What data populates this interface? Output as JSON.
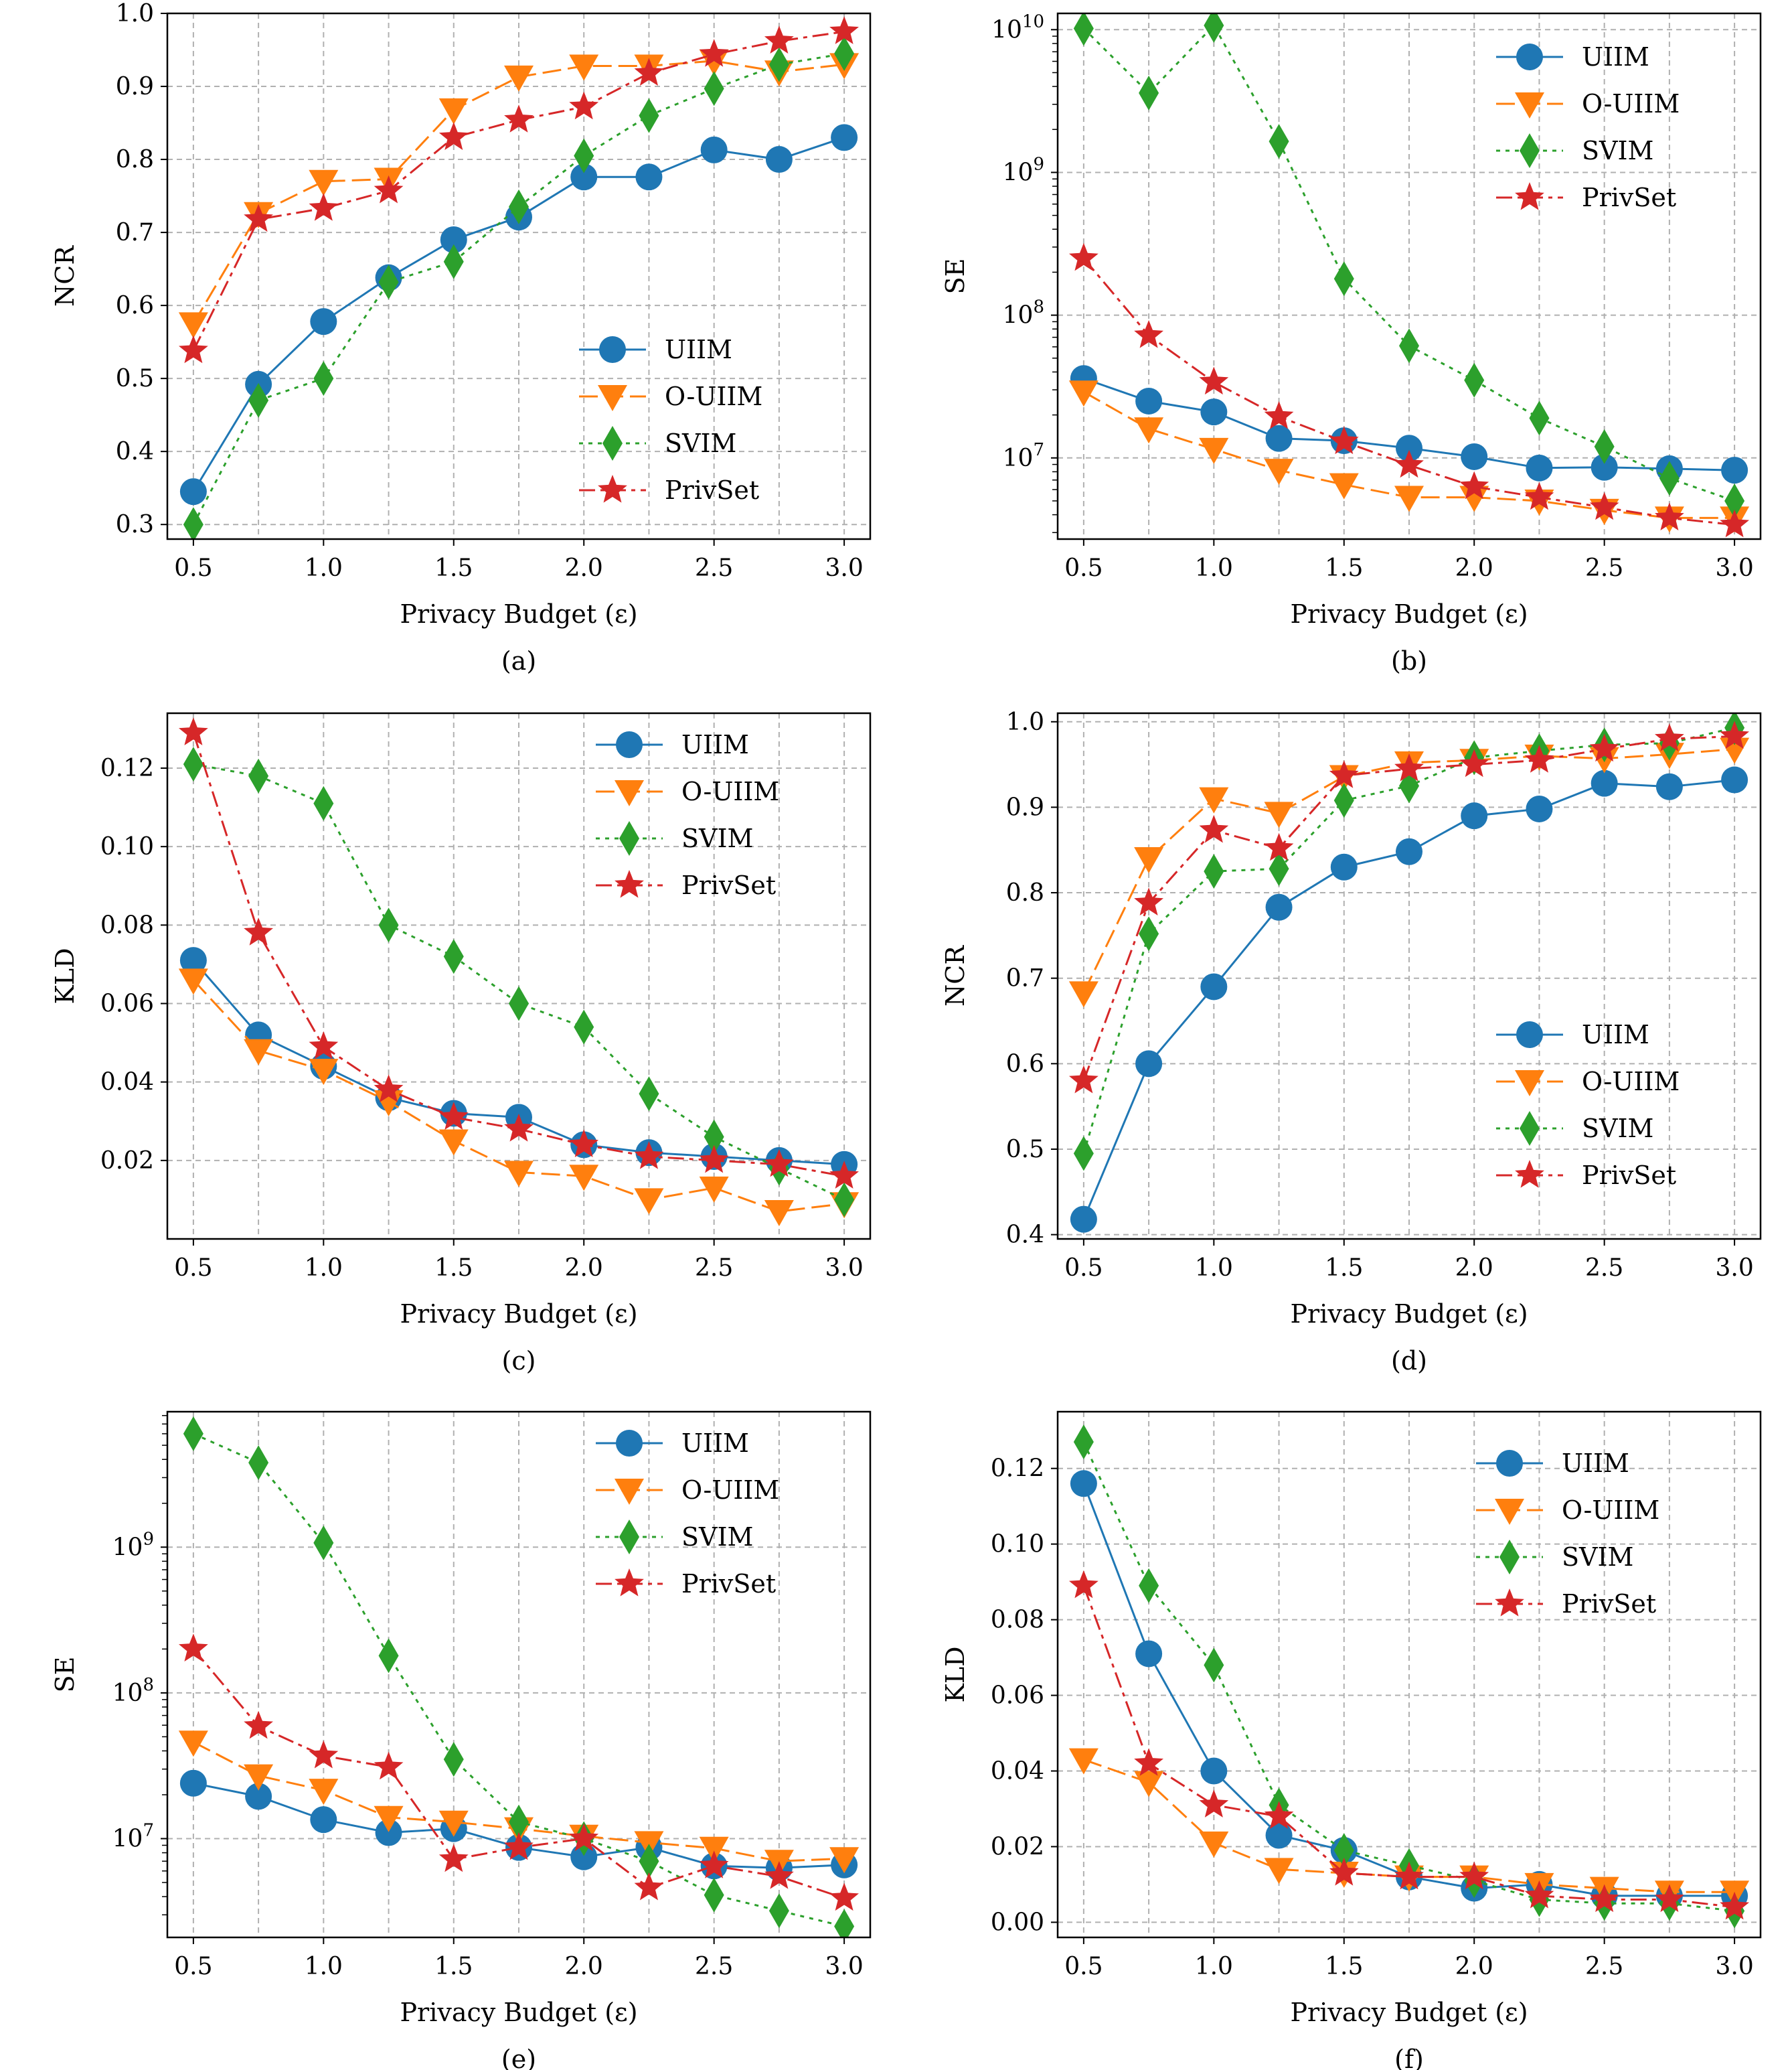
{
  "colors": {
    "UIIM": "#1f77b4",
    "O-UIIM": "#ff7f0e",
    "SVIM": "#2ca02c",
    "PrivSet": "#d62728"
  },
  "legend": [
    "UIIM",
    "O-UIIM",
    "SVIM",
    "PrivSet"
  ],
  "chart_data": [
    {
      "type": "line",
      "caption": "(a)",
      "xlabel": "Privacy Budget (ε)",
      "ylabel": "NCR",
      "yscale": "linear",
      "xlim": [
        0.4,
        3.1
      ],
      "ylim": [
        0.28,
        1.0
      ],
      "xticks": [
        0.5,
        1.0,
        1.5,
        2.0,
        2.5,
        3.0
      ],
      "xtick_labels": [
        "0.5",
        "1.0",
        "1.5",
        "2.0",
        "2.5",
        "3.0"
      ],
      "yticks": [
        0.3,
        0.4,
        0.5,
        0.6,
        0.7,
        0.8,
        0.9,
        1.0
      ],
      "ytick_labels": [
        "0.3",
        "0.4",
        "0.5",
        "0.6",
        "0.7",
        "0.8",
        "0.9",
        "1.0"
      ],
      "grid": true,
      "legend_loc": "lower-right",
      "x": [
        0.5,
        0.75,
        1.0,
        1.25,
        1.5,
        1.75,
        2.0,
        2.25,
        2.5,
        2.75,
        3.0
      ],
      "series": [
        {
          "name": "UIIM",
          "values": [
            0.345,
            0.492,
            0.578,
            0.638,
            0.69,
            0.721,
            0.776,
            0.776,
            0.813,
            0.8,
            0.83
          ]
        },
        {
          "name": "O-UIIM",
          "values": [
            0.575,
            0.726,
            0.77,
            0.773,
            0.868,
            0.913,
            0.928,
            0.928,
            0.935,
            0.92,
            0.93
          ]
        },
        {
          "name": "SVIM",
          "values": [
            0.3,
            0.47,
            0.5,
            0.632,
            0.66,
            0.735,
            0.805,
            0.86,
            0.897,
            0.93,
            0.945
          ]
        },
        {
          "name": "PrivSet",
          "values": [
            0.538,
            0.718,
            0.733,
            0.757,
            0.83,
            0.854,
            0.872,
            0.918,
            0.944,
            0.962,
            0.975
          ]
        }
      ]
    },
    {
      "type": "line",
      "caption": "(b)",
      "xlabel": "Privacy Budget (ε)",
      "ylabel": "SE",
      "yscale": "log",
      "xlim": [
        0.4,
        3.1
      ],
      "ylim": [
        2700000.0,
        13000000000.0
      ],
      "xticks": [
        0.5,
        1.0,
        1.5,
        2.0,
        2.5,
        3.0
      ],
      "xtick_labels": [
        "0.5",
        "1.0",
        "1.5",
        "2.0",
        "2.5",
        "3.0"
      ],
      "yticks": [
        10000000.0,
        100000000.0,
        1000000000.0,
        10000000000.0
      ],
      "ytick_mantissa": [
        "10",
        "10",
        "10",
        "10"
      ],
      "ytick_exponents": [
        "7",
        "8",
        "9",
        "10"
      ],
      "grid": true,
      "legend_loc": "upper-right",
      "x": [
        0.5,
        0.75,
        1.0,
        1.25,
        1.5,
        1.75,
        2.0,
        2.25,
        2.5,
        2.75,
        3.0
      ],
      "series": [
        {
          "name": "UIIM",
          "values": [
            36000000.0,
            25000000.0,
            21000000.0,
            13700000.0,
            13200000.0,
            11700000.0,
            10200000.0,
            8500000.0,
            8600000.0,
            8400000.0,
            8200000.0
          ]
        },
        {
          "name": "O-UIIM",
          "values": [
            29000000.0,
            16000000.0,
            11500000.0,
            8200000.0,
            6500000.0,
            5300000.0,
            5300000.0,
            5000000.0,
            4300000.0,
            3800000.0,
            3800000.0
          ]
        },
        {
          "name": "SVIM",
          "values": [
            10200000000.0,
            3600000000.0,
            10700000000.0,
            1650000000.0,
            180000000.0,
            61000000.0,
            35000000.0,
            19000000.0,
            12000000.0,
            7200000.0,
            5000000.0
          ]
        },
        {
          "name": "PrivSet",
          "values": [
            250000000.0,
            72000000.0,
            34000000.0,
            19500000.0,
            13000000.0,
            8900000.0,
            6300000.0,
            5300000.0,
            4500000.0,
            3800000.0,
            3400000.0
          ]
        }
      ]
    },
    {
      "type": "line",
      "caption": "(c)",
      "xlabel": "Privacy Budget (ε)",
      "ylabel": "KLD",
      "yscale": "linear",
      "xlim": [
        0.4,
        3.1
      ],
      "ylim": [
        0.0,
        0.134
      ],
      "xticks": [
        0.5,
        1.0,
        1.5,
        2.0,
        2.5,
        3.0
      ],
      "xtick_labels": [
        "0.5",
        "1.0",
        "1.5",
        "2.0",
        "2.5",
        "3.0"
      ],
      "yticks": [
        0.02,
        0.04,
        0.06,
        0.08,
        0.1,
        0.12
      ],
      "ytick_labels": [
        "0.02",
        "0.04",
        "0.06",
        "0.08",
        "0.10",
        "0.12"
      ],
      "grid": true,
      "legend_loc": "upper-right",
      "x": [
        0.5,
        0.75,
        1.0,
        1.25,
        1.5,
        1.75,
        2.0,
        2.25,
        2.5,
        2.75,
        3.0
      ],
      "series": [
        {
          "name": "UIIM",
          "values": [
            0.071,
            0.052,
            0.044,
            0.036,
            0.032,
            0.031,
            0.024,
            0.022,
            0.021,
            0.02,
            0.019
          ]
        },
        {
          "name": "O-UIIM",
          "values": [
            0.066,
            0.048,
            0.043,
            0.035,
            0.025,
            0.017,
            0.016,
            0.01,
            0.013,
            0.007,
            0.009
          ]
        },
        {
          "name": "SVIM",
          "values": [
            0.121,
            0.118,
            0.111,
            0.08,
            0.072,
            0.06,
            0.054,
            0.037,
            0.026,
            0.018,
            0.01
          ]
        },
        {
          "name": "PrivSet",
          "values": [
            0.129,
            0.078,
            0.049,
            0.038,
            0.031,
            0.028,
            0.024,
            0.021,
            0.02,
            0.019,
            0.016
          ]
        }
      ]
    },
    {
      "type": "line",
      "caption": "(d)",
      "xlabel": "Privacy Budget (ε)",
      "ylabel": "NCR",
      "yscale": "linear",
      "xlim": [
        0.4,
        3.1
      ],
      "ylim": [
        0.395,
        1.01
      ],
      "xticks": [
        0.5,
        1.0,
        1.5,
        2.0,
        2.5,
        3.0
      ],
      "xtick_labels": [
        "0.5",
        "1.0",
        "1.5",
        "2.0",
        "2.5",
        "3.0"
      ],
      "yticks": [
        0.4,
        0.5,
        0.6,
        0.7,
        0.8,
        0.9,
        1.0
      ],
      "ytick_labels": [
        "0.4",
        "0.5",
        "0.6",
        "0.7",
        "0.8",
        "0.9",
        "1.0"
      ],
      "grid": true,
      "legend_loc": "lower-right",
      "x": [
        0.5,
        0.75,
        1.0,
        1.25,
        1.5,
        1.75,
        2.0,
        2.25,
        2.5,
        2.75,
        3.0
      ],
      "series": [
        {
          "name": "UIIM",
          "values": [
            0.418,
            0.6,
            0.69,
            0.783,
            0.83,
            0.848,
            0.89,
            0.898,
            0.928,
            0.924,
            0.932
          ]
        },
        {
          "name": "O-UIIM",
          "values": [
            0.683,
            0.84,
            0.91,
            0.893,
            0.936,
            0.952,
            0.955,
            0.96,
            0.957,
            0.962,
            0.968
          ]
        },
        {
          "name": "SVIM",
          "values": [
            0.495,
            0.752,
            0.825,
            0.828,
            0.908,
            0.925,
            0.958,
            0.966,
            0.973,
            0.975,
            0.993
          ]
        },
        {
          "name": "PrivSet",
          "values": [
            0.58,
            0.788,
            0.873,
            0.852,
            0.937,
            0.945,
            0.95,
            0.955,
            0.968,
            0.98,
            0.983
          ]
        }
      ]
    },
    {
      "type": "line",
      "caption": "(e)",
      "xlabel": "Privacy Budget (ε)",
      "ylabel": "SE",
      "yscale": "log",
      "xlim": [
        0.4,
        3.1
      ],
      "ylim": [
        2100000.0,
        8500000000.0
      ],
      "xticks": [
        0.5,
        1.0,
        1.5,
        2.0,
        2.5,
        3.0
      ],
      "xtick_labels": [
        "0.5",
        "1.0",
        "1.5",
        "2.0",
        "2.5",
        "3.0"
      ],
      "yticks": [
        10000000.0,
        100000000.0,
        1000000000.0
      ],
      "ytick_mantissa": [
        "10",
        "10",
        "10"
      ],
      "ytick_exponents": [
        "7",
        "8",
        "9"
      ],
      "grid": true,
      "legend_loc": "upper-right",
      "x": [
        0.5,
        0.75,
        1.0,
        1.25,
        1.5,
        1.75,
        2.0,
        2.25,
        2.5,
        2.75,
        3.0
      ],
      "series": [
        {
          "name": "UIIM",
          "values": [
            24000000.0,
            19500000.0,
            13500000.0,
            11000000.0,
            11700000.0,
            8700000.0,
            7500000.0,
            8700000.0,
            6500000.0,
            6300000.0,
            6600000.0
          ]
        },
        {
          "name": "O-UIIM",
          "values": [
            46000000.0,
            27000000.0,
            21500000.0,
            14000000.0,
            13000000.0,
            11700000.0,
            10400000.0,
            9400000.0,
            8600000.0,
            7000000.0,
            7300000.0
          ]
        },
        {
          "name": "SVIM",
          "values": [
            6000000000.0,
            3800000000.0,
            1070000000.0,
            180000000.0,
            35000000.0,
            13000000.0,
            10000000.0,
            7000000.0,
            4100000.0,
            3200000.0,
            2500000.0
          ]
        },
        {
          "name": "PrivSet",
          "values": [
            200000000.0,
            59000000.0,
            37000000.0,
            31000000.0,
            7200000.0,
            8700000.0,
            10000000.0,
            4600000.0,
            6500000.0,
            5500000.0,
            3900000.0
          ]
        }
      ]
    },
    {
      "type": "line",
      "caption": "(f)",
      "xlabel": "Privacy Budget (ε)",
      "ylabel": "KLD",
      "yscale": "linear",
      "xlim": [
        0.4,
        3.1
      ],
      "ylim": [
        -0.004,
        0.135
      ],
      "xticks": [
        0.5,
        1.0,
        1.5,
        2.0,
        2.5,
        3.0
      ],
      "xtick_labels": [
        "0.5",
        "1.0",
        "1.5",
        "2.0",
        "2.5",
        "3.0"
      ],
      "yticks": [
        0.0,
        0.02,
        0.04,
        0.06,
        0.08,
        0.1,
        0.12
      ],
      "ytick_labels": [
        "0.00",
        "0.02",
        "0.04",
        "0.06",
        "0.08",
        "0.10",
        "0.12"
      ],
      "grid": true,
      "legend_loc": "upper-right",
      "x": [
        0.5,
        0.75,
        1.0,
        1.25,
        1.5,
        1.75,
        2.0,
        2.25,
        2.5,
        2.75,
        3.0
      ],
      "series": [
        {
          "name": "UIIM",
          "values": [
            0.116,
            0.071,
            0.04,
            0.023,
            0.019,
            0.012,
            0.009,
            0.01,
            0.007,
            0.007,
            0.007
          ]
        },
        {
          "name": "O-UIIM",
          "values": [
            0.043,
            0.037,
            0.021,
            0.014,
            0.013,
            0.012,
            0.012,
            0.01,
            0.009,
            0.008,
            0.008
          ]
        },
        {
          "name": "SVIM",
          "values": [
            0.127,
            0.089,
            0.068,
            0.031,
            0.019,
            0.015,
            0.011,
            0.006,
            0.005,
            0.005,
            0.003
          ]
        },
        {
          "name": "PrivSet",
          "values": [
            0.089,
            0.042,
            0.031,
            0.028,
            0.013,
            0.012,
            0.012,
            0.007,
            0.006,
            0.006,
            0.004
          ]
        }
      ]
    }
  ]
}
